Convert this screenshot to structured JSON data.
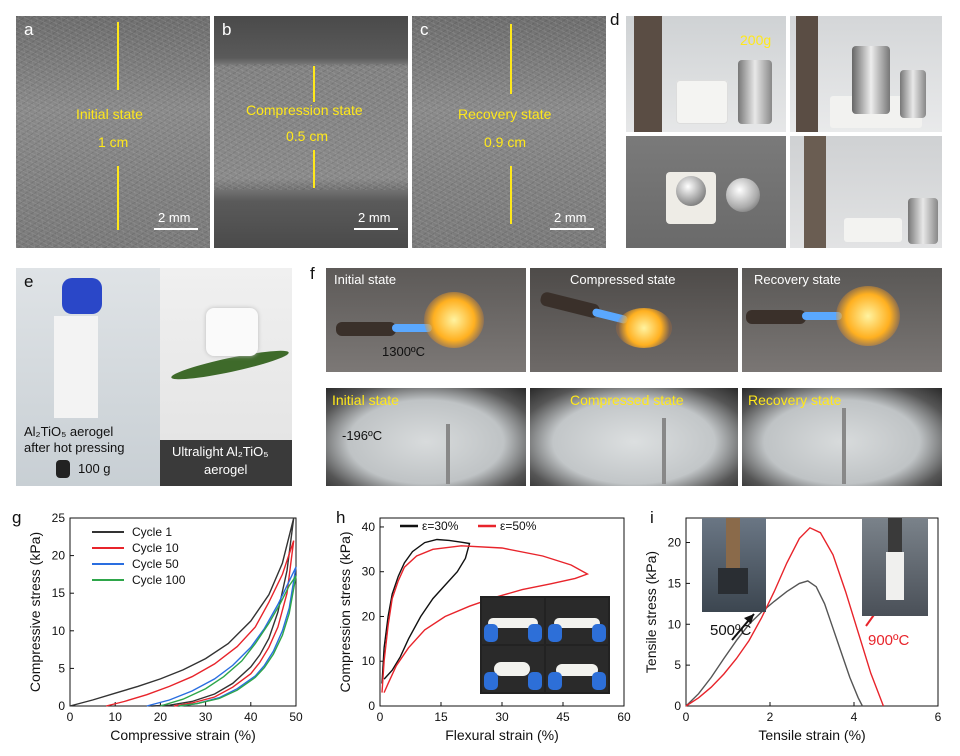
{
  "panels": {
    "a": {
      "label": "a",
      "state": "Initial state",
      "size": "1 cm",
      "scale": "2 mm"
    },
    "b": {
      "label": "b",
      "state": "Compression state",
      "size": "0.5 cm",
      "scale": "2 mm"
    },
    "c": {
      "label": "c",
      "state": "Recovery state",
      "size": "0.9 cm",
      "scale": "2 mm"
    },
    "d": {
      "label": "d",
      "weight": "200g"
    },
    "e": {
      "label": "e",
      "caption_left_1": "Al₂TiO₅ aerogel",
      "caption_left_2": "after hot pressing",
      "weight": "100 g",
      "caption_right_1": "Ultralight Al₂TiO₅",
      "caption_right_2": "aerogel"
    },
    "f": {
      "label": "f",
      "top_states": [
        "Initial state",
        "Compressed state",
        "Recovery state"
      ],
      "top_temp": "1300ºC",
      "bottom_states": [
        "Initial state",
        "Compressed state",
        "Recovery state"
      ],
      "bottom_temp": "-196ºC"
    },
    "g": {
      "label": "g"
    },
    "h": {
      "label": "h"
    },
    "i": {
      "label": "i",
      "annot_left": "500ºC",
      "annot_right": "900ºC"
    }
  },
  "colors": {
    "black": "#333333",
    "red": "#e8242b",
    "blue": "#2a6ee0",
    "green": "#2ea64a",
    "yellow": "#ffe81a"
  },
  "chart_data": [
    {
      "id": "g",
      "type": "line",
      "xlabel": "Compressive strain (%)",
      "ylabel": "Compressive stress (kPa)",
      "xlim": [
        0,
        50
      ],
      "ylim": [
        0,
        25
      ],
      "xticks": [
        0,
        10,
        20,
        30,
        40,
        50
      ],
      "yticks": [
        0,
        5,
        10,
        15,
        20,
        25
      ],
      "legend_position": "top-left",
      "series": [
        {
          "name": "Cycle 1",
          "color": "#333333",
          "loading": [
            [
              0,
              0
            ],
            [
              5,
              0.8
            ],
            [
              10,
              1.7
            ],
            [
              15,
              2.6
            ],
            [
              20,
              3.6
            ],
            [
              25,
              4.8
            ],
            [
              30,
              6.3
            ],
            [
              35,
              8.3
            ],
            [
              40,
              11.3
            ],
            [
              44,
              14.8
            ],
            [
              47,
              19
            ],
            [
              49.5,
              25
            ]
          ],
          "unloading": [
            [
              49.5,
              25
            ],
            [
              48,
              18
            ],
            [
              46,
              12.5
            ],
            [
              44,
              9
            ],
            [
              42,
              6.8
            ],
            [
              40,
              5.2
            ],
            [
              36,
              3
            ],
            [
              32,
              1.6
            ],
            [
              27,
              0.6
            ],
            [
              22,
              0.1
            ],
            [
              18,
              0
            ]
          ]
        },
        {
          "name": "Cycle 10",
          "color": "#e8242b",
          "loading": [
            [
              8,
              0
            ],
            [
              12,
              0.6
            ],
            [
              17,
              1.5
            ],
            [
              22,
              2.6
            ],
            [
              27,
              3.9
            ],
            [
              32,
              5.6
            ],
            [
              37,
              7.9
            ],
            [
              41,
              10.5
            ],
            [
              44,
              13.8
            ],
            [
              47,
              17.5
            ],
            [
              49.5,
              22
            ]
          ],
          "unloading": [
            [
              49.5,
              22
            ],
            [
              48,
              15
            ],
            [
              46,
              10.5
            ],
            [
              44,
              7.8
            ],
            [
              42,
              5.8
            ],
            [
              40,
              4.3
            ],
            [
              36,
              2.5
            ],
            [
              32,
              1.2
            ],
            [
              27,
              0.4
            ],
            [
              23,
              0
            ]
          ]
        },
        {
          "name": "Cycle 50",
          "color": "#2a6ee0",
          "loading": [
            [
              17,
              0
            ],
            [
              22,
              0.8
            ],
            [
              27,
              2
            ],
            [
              32,
              3.6
            ],
            [
              36,
              5.4
            ],
            [
              40,
              7.8
            ],
            [
              43,
              10.3
            ],
            [
              46,
              13.5
            ],
            [
              48,
              16
            ],
            [
              50,
              18.5
            ]
          ],
          "unloading": [
            [
              50,
              18.5
            ],
            [
              48.5,
              13
            ],
            [
              47,
              10
            ],
            [
              45,
              7.3
            ],
            [
              43,
              5.4
            ],
            [
              41,
              4
            ],
            [
              37,
              2.3
            ],
            [
              33,
              1.1
            ],
            [
              28,
              0.3
            ],
            [
              24,
              0
            ]
          ]
        },
        {
          "name": "Cycle 100",
          "color": "#2ea64a",
          "loading": [
            [
              20,
              0
            ],
            [
              25,
              0.9
            ],
            [
              30,
              2.3
            ],
            [
              34,
              3.9
            ],
            [
              38,
              6
            ],
            [
              41,
              8.3
            ],
            [
              44,
              11
            ],
            [
              46.5,
              13.6
            ],
            [
              48.5,
              16
            ],
            [
              50,
              17.3
            ]
          ],
          "unloading": [
            [
              50,
              17.3
            ],
            [
              48.5,
              12.3
            ],
            [
              47,
              9.4
            ],
            [
              45,
              6.9
            ],
            [
              43,
              5.1
            ],
            [
              41,
              3.8
            ],
            [
              37,
              2.1
            ],
            [
              33,
              1
            ],
            [
              28,
              0.3
            ],
            [
              24,
              0
            ]
          ]
        }
      ]
    },
    {
      "id": "h",
      "type": "line",
      "xlabel": "Flexural strain (%)",
      "ylabel": "Compression stress (kPa)",
      "xlim": [
        0,
        60
      ],
      "ylim": [
        0,
        42
      ],
      "xticks": [
        0,
        15,
        30,
        45,
        60
      ],
      "yticks": [
        0,
        10,
        20,
        30,
        40
      ],
      "legend_position": "top",
      "series": [
        {
          "name": "ε=30%",
          "color": "#111111",
          "loading": [
            [
              0.5,
              5
            ],
            [
              1,
              13
            ],
            [
              2,
              20
            ],
            [
              3,
              25
            ],
            [
              4.5,
              29
            ],
            [
              6,
              32
            ],
            [
              8,
              34.5
            ],
            [
              11,
              36.5
            ],
            [
              14,
              37.2
            ],
            [
              17,
              37
            ],
            [
              20,
              36.6
            ],
            [
              22,
              36.3
            ]
          ],
          "unloading": [
            [
              22,
              36.3
            ],
            [
              21,
              33
            ],
            [
              19,
              30
            ],
            [
              16,
              27
            ],
            [
              13,
              24
            ],
            [
              10,
              20
            ],
            [
              7,
              15
            ],
            [
              5,
              11
            ],
            [
              3,
              8
            ],
            [
              1,
              6
            ]
          ]
        },
        {
          "name": "ε=50%",
          "color": "#e8242b",
          "loading": [
            [
              0.5,
              3
            ],
            [
              1,
              10
            ],
            [
              2,
              18
            ],
            [
              3,
              24
            ],
            [
              4.5,
              28
            ],
            [
              6,
              31
            ],
            [
              9,
              33.5
            ],
            [
              13,
              35
            ],
            [
              20,
              35.8
            ],
            [
              30,
              35.3
            ],
            [
              40,
              33.5
            ],
            [
              47,
              31.5
            ],
            [
              50,
              30
            ],
            [
              51,
              29.5
            ]
          ],
          "unloading": [
            [
              51,
              29.5
            ],
            [
              48,
              28.5
            ],
            [
              42,
              27.3
            ],
            [
              35,
              26
            ],
            [
              28,
              24.2
            ],
            [
              22,
              22.3
            ],
            [
              16,
              20
            ],
            [
              11,
              17
            ],
            [
              7,
              13
            ],
            [
              4,
              9
            ],
            [
              2,
              5
            ],
            [
              1,
              3
            ]
          ]
        }
      ]
    },
    {
      "id": "i",
      "type": "line",
      "xlabel": "Tensile strain (%)",
      "ylabel": "Tensile stress (kPa)",
      "xlim": [
        0,
        6
      ],
      "ylim": [
        0,
        23
      ],
      "xticks": [
        0,
        2,
        4,
        6
      ],
      "yticks": [
        0,
        5,
        10,
        15,
        20
      ],
      "series": [
        {
          "name": "500ºC",
          "color": "#555555",
          "points": [
            [
              0,
              0
            ],
            [
              0.3,
              1.5
            ],
            [
              0.6,
              3.5
            ],
            [
              0.9,
              5.8
            ],
            [
              1.2,
              8
            ],
            [
              1.5,
              10
            ],
            [
              1.8,
              11.5
            ],
            [
              2.1,
              12.8
            ],
            [
              2.4,
              14
            ],
            [
              2.7,
              15
            ],
            [
              2.9,
              15.3
            ],
            [
              3.1,
              14.6
            ],
            [
              3.3,
              12.5
            ],
            [
              3.5,
              9.5
            ],
            [
              3.7,
              6.5
            ],
            [
              3.9,
              3.5
            ],
            [
              4.1,
              1
            ],
            [
              4.2,
              0
            ]
          ]
        },
        {
          "name": "900ºC",
          "color": "#e8242b",
          "points": [
            [
              0,
              0
            ],
            [
              0.3,
              1
            ],
            [
              0.6,
              2.3
            ],
            [
              0.9,
              3.9
            ],
            [
              1.2,
              5.8
            ],
            [
              1.5,
              8
            ],
            [
              1.8,
              10.8
            ],
            [
              2.1,
              14
            ],
            [
              2.4,
              17.5
            ],
            [
              2.7,
              20.5
            ],
            [
              2.95,
              21.8
            ],
            [
              3.2,
              21.2
            ],
            [
              3.5,
              18.5
            ],
            [
              3.8,
              14
            ],
            [
              4.1,
              9
            ],
            [
              4.4,
              4
            ],
            [
              4.7,
              0
            ]
          ]
        }
      ]
    }
  ]
}
